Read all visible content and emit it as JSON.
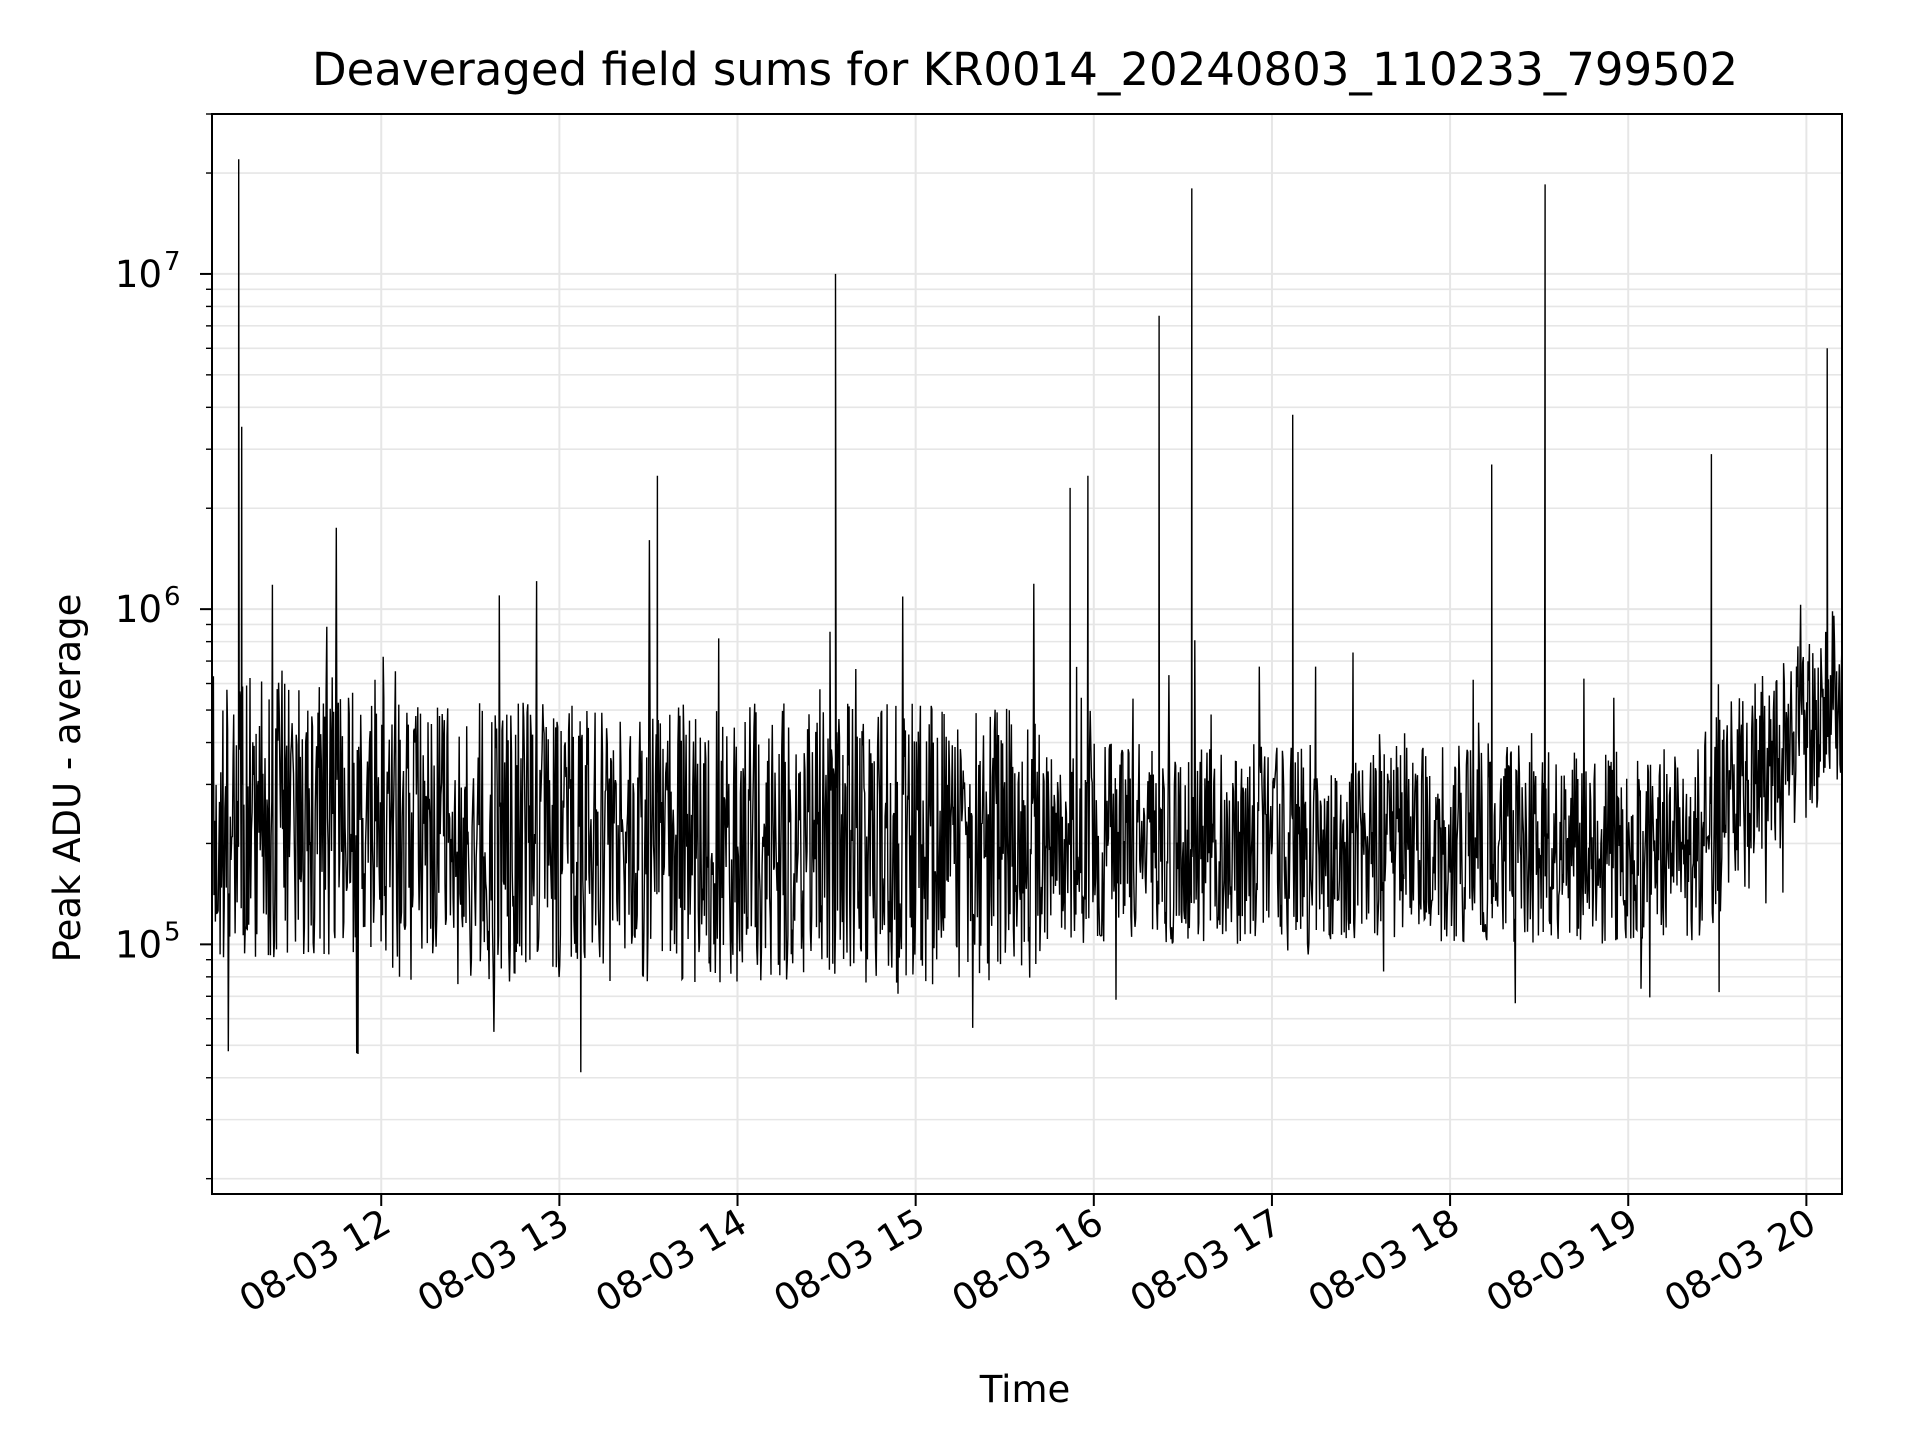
{
  "chart_data": {
    "type": "line",
    "title": "Deaveraged field sums for KR0014_20240803_110233_799502",
    "xlabel": "Time",
    "ylabel": "Peak ADU - average",
    "yscale": "log",
    "ylim": [
      18000,
      30000000
    ],
    "xlim": [
      "08-03 11:03",
      "08-03 20:12"
    ],
    "grid": true,
    "line_color": "#000000",
    "grid_color": "#e6e6e6",
    "x_ticks": [
      "08-03 12",
      "08-03 13",
      "08-03 14",
      "08-03 15",
      "08-03 16",
      "08-03 17",
      "08-03 18",
      "08-03 19",
      "08-03 20"
    ],
    "y_ticks": [
      {
        "base": "10",
        "exp": "5"
      },
      {
        "base": "10",
        "exp": "6"
      },
      {
        "base": "10",
        "exp": "7"
      }
    ],
    "series": [
      {
        "values_description_free": true,
        "x": [
          "08-03 11:03",
          "08-03 11:05",
          "08-03 11:08",
          "08-03 11:11",
          "08-03 11:12",
          "08-03 11:13",
          "08-03 11:16",
          "08-03 11:20",
          "08-03 11:25",
          "08-03 11:30",
          "08-03 11:35",
          "08-03 11:40",
          "08-03 11:45",
          "08-03 11:50",
          "08-03 11:55",
          "08-03 12:05",
          "08-03 12:15",
          "08-03 12:25",
          "08-03 12:35",
          "08-03 12:45",
          "08-03 12:55",
          "08-03 13:05",
          "08-03 13:15",
          "08-03 13:25",
          "08-03 13:33",
          "08-03 13:45",
          "08-03 13:55",
          "08-03 14:05",
          "08-03 14:15",
          "08-03 14:25",
          "08-03 14:33",
          "08-03 14:35",
          "08-03 14:45",
          "08-03 14:55",
          "08-03 15:05",
          "08-03 15:15",
          "08-03 15:25",
          "08-03 15:35",
          "08-03 15:45",
          "08-03 15:52",
          "08-03 15:58",
          "08-03 16:05",
          "08-03 16:15",
          "08-03 16:22",
          "08-03 16:33",
          "08-03 16:40",
          "08-03 16:50",
          "08-03 17:00",
          "08-03 17:07",
          "08-03 17:15",
          "08-03 17:25",
          "08-03 17:35",
          "08-03 17:45",
          "08-03 17:55",
          "08-03 18:05",
          "08-03 18:14",
          "08-03 18:25",
          "08-03 18:32",
          "08-03 18:40",
          "08-03 18:50",
          "08-03 19:00",
          "08-03 19:10",
          "08-03 19:20",
          "08-03 19:28",
          "08-03 19:35",
          "08-03 19:45",
          "08-03 19:55",
          "08-03 20:02",
          "08-03 20:07",
          "08-03 20:12"
        ],
        "values": [
          300000,
          200000,
          250000,
          400000,
          22000000,
          3500000,
          180000,
          250000,
          170000,
          120000,
          180000,
          200000,
          150000,
          250000,
          180000,
          200000,
          150000,
          220000,
          170000,
          200000,
          180000,
          200000,
          170000,
          150000,
          2500000,
          180000,
          200000,
          220000,
          170000,
          180000,
          10000000,
          150000,
          170000,
          160000,
          180000,
          190000,
          200000,
          180000,
          190000,
          2300000,
          2500000,
          210000,
          220000,
          7500000,
          18000000,
          210000,
          200000,
          200000,
          3800000,
          200000,
          190000,
          180000,
          190000,
          200000,
          190000,
          2700000,
          190000,
          18500000,
          200000,
          190000,
          180000,
          180000,
          170000,
          2900000,
          180000,
          220000,
          300000,
          400000,
          6000000,
          550000
        ]
      }
    ]
  }
}
